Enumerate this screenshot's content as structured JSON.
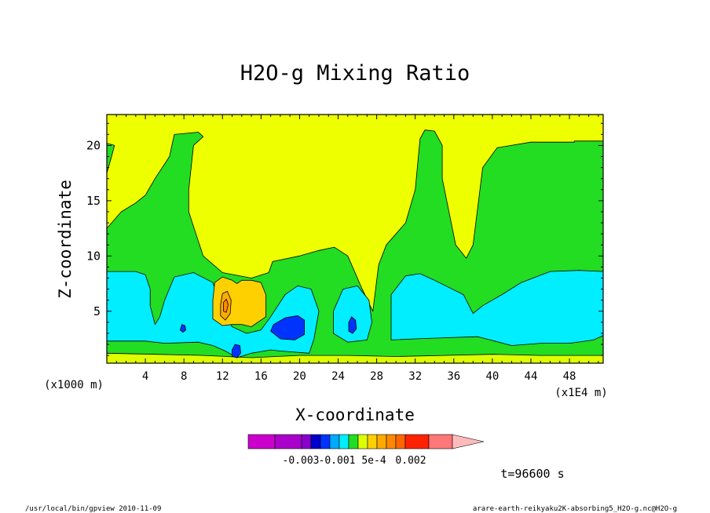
{
  "chart_data": {
    "type": "contour",
    "title": "H2O-g Mixing Ratio",
    "xlabel": "X-coordinate",
    "ylabel": "Z-coordinate",
    "x_unit_left": "(x1000 m)",
    "x_unit_right": "(x1E4 m)",
    "xlim": [
      0,
      51.5
    ],
    "ylim": [
      0.3,
      22.8
    ],
    "xticks": [
      4,
      8,
      12,
      16,
      20,
      24,
      28,
      32,
      36,
      40,
      44,
      48
    ],
    "yticks": [
      5,
      10,
      15,
      20
    ],
    "time_label": "t=96600 s",
    "colorbar": {
      "colors": [
        "#cc00cc",
        "#aa00cc",
        "#8800cc",
        "#0000cc",
        "#0033ff",
        "#00aaff",
        "#00eeff",
        "#22dd22",
        "#ddff00",
        "#ffd000",
        "#ffaa00",
        "#ff8800",
        "#ff6600",
        "#ff2200",
        "#ff7777",
        "#ffbbbb"
      ],
      "tick_labels": [
        "-0.003",
        "-0.001",
        "5e-4",
        "0.002"
      ]
    },
    "regions": [
      {
        "level": "green",
        "color": "#22dd22",
        "polygon": [
          [
            0,
            0.3
          ],
          [
            51.5,
            0.3
          ],
          [
            51.5,
            20.4
          ],
          [
            48.5,
            20.4
          ],
          [
            48.5,
            20.3
          ],
          [
            44,
            20.3
          ],
          [
            40.5,
            19.8
          ],
          [
            39,
            18
          ],
          [
            38,
            11
          ],
          [
            37.3,
            9.8
          ],
          [
            36.2,
            11
          ],
          [
            34.8,
            17
          ],
          [
            34.8,
            20
          ],
          [
            34,
            21.3
          ],
          [
            33,
            21.4
          ],
          [
            32.5,
            20.6
          ],
          [
            32,
            16
          ],
          [
            31,
            13
          ],
          [
            29,
            11
          ],
          [
            28.2,
            9.2
          ],
          [
            27.6,
            5
          ],
          [
            26.5,
            7
          ],
          [
            25,
            10
          ],
          [
            23.6,
            10.8
          ],
          [
            22,
            10.5
          ],
          [
            20,
            10
          ],
          [
            17.2,
            9.5
          ],
          [
            16.8,
            8.5
          ],
          [
            15,
            8
          ],
          [
            12,
            8.5
          ],
          [
            10,
            10
          ],
          [
            8.5,
            14
          ],
          [
            8.5,
            16
          ],
          [
            9,
            20
          ],
          [
            10,
            20.8
          ],
          [
            9.5,
            21.2
          ],
          [
            7,
            21
          ],
          [
            6.5,
            19
          ],
          [
            5,
            17
          ],
          [
            4,
            15.5
          ],
          [
            3,
            14.8
          ],
          [
            1.5,
            14
          ],
          [
            0.5,
            13
          ],
          [
            0,
            12.5
          ]
        ]
      },
      {
        "level": "green-corner",
        "color": "#22dd22",
        "polygon": [
          [
            0,
            17.5
          ],
          [
            0.5,
            19
          ],
          [
            0.8,
            20
          ],
          [
            0,
            20.2
          ]
        ]
      },
      {
        "level": "yellow-bottom",
        "color": "#ddff00",
        "polygon": [
          [
            0,
            0.3
          ],
          [
            51.5,
            0.3
          ],
          [
            51.5,
            1
          ],
          [
            50,
            1
          ],
          [
            45,
            1
          ],
          [
            40,
            1.1
          ],
          [
            35,
            1
          ],
          [
            30,
            0.9
          ],
          [
            25,
            1
          ],
          [
            20,
            1
          ],
          [
            15,
            0.8
          ],
          [
            10,
            1
          ],
          [
            5,
            1.1
          ],
          [
            0,
            1.2
          ]
        ]
      },
      {
        "level": "cyan",
        "color": "#00eeff",
        "polygon": [
          [
            0,
            2.3
          ],
          [
            4,
            2.3
          ],
          [
            6,
            2.1
          ],
          [
            9.5,
            2.2
          ],
          [
            11,
            1.9
          ],
          [
            12.3,
            1.4
          ],
          [
            13.5,
            0.8
          ],
          [
            15,
            1.2
          ],
          [
            17,
            1.5
          ],
          [
            18,
            1.4
          ],
          [
            21,
            1.2
          ],
          [
            21.5,
            2.5
          ],
          [
            22,
            5
          ],
          [
            21.2,
            7
          ],
          [
            19.8,
            7.3
          ],
          [
            18.5,
            6.5
          ],
          [
            17,
            4.5
          ],
          [
            16,
            3.3
          ],
          [
            14.5,
            3
          ],
          [
            13,
            3.6
          ],
          [
            12,
            5
          ],
          [
            11,
            7.6
          ],
          [
            9,
            8.5
          ],
          [
            7,
            8.1
          ],
          [
            6,
            6
          ],
          [
            5.5,
            4.5
          ],
          [
            5,
            3.8
          ],
          [
            4.5,
            5.5
          ],
          [
            4.5,
            7
          ],
          [
            4,
            8.3
          ],
          [
            3,
            8.6
          ],
          [
            0,
            8.6
          ]
        ]
      },
      {
        "level": "cyan-mid",
        "color": "#00eeff",
        "polygon": [
          [
            23.5,
            3
          ],
          [
            25,
            2.2
          ],
          [
            27,
            2.4
          ],
          [
            27.5,
            4
          ],
          [
            27.2,
            6
          ],
          [
            26,
            7.3
          ],
          [
            24.5,
            7
          ],
          [
            23.5,
            5
          ]
        ]
      },
      {
        "level": "cyan-right",
        "color": "#00eeff",
        "polygon": [
          [
            29.5,
            2.4
          ],
          [
            32,
            2.5
          ],
          [
            35,
            2.6
          ],
          [
            38.5,
            2.7
          ],
          [
            42,
            1.9
          ],
          [
            45,
            2.1
          ],
          [
            48,
            2.1
          ],
          [
            50.5,
            2.4
          ],
          [
            51.5,
            2.8
          ],
          [
            51.5,
            8.6
          ],
          [
            49,
            8.7
          ],
          [
            46,
            8.6
          ],
          [
            43,
            7.6
          ],
          [
            41,
            6.5
          ],
          [
            39,
            5.5
          ],
          [
            38,
            4.8
          ],
          [
            37,
            6.5
          ],
          [
            34,
            7.8
          ],
          [
            32.5,
            8.4
          ],
          [
            31,
            8.2
          ],
          [
            29.5,
            6.5
          ]
        ]
      },
      {
        "level": "orange-light",
        "color": "#ffd000",
        "polygon": [
          [
            11,
            4.3
          ],
          [
            12,
            3.7
          ],
          [
            13,
            3.8
          ],
          [
            14,
            3.8
          ],
          [
            15,
            3.6
          ],
          [
            16.5,
            4.5
          ],
          [
            16.5,
            6.5
          ],
          [
            16,
            7.6
          ],
          [
            15,
            7.8
          ],
          [
            14,
            7.8
          ],
          [
            13.5,
            7.5
          ],
          [
            13,
            7.8
          ],
          [
            12,
            8.1
          ],
          [
            11.2,
            7.6
          ],
          [
            11,
            6
          ]
        ]
      },
      {
        "level": "orange",
        "color": "#ffaa00",
        "polygon": [
          [
            11.8,
            4.6
          ],
          [
            12.3,
            4.2
          ],
          [
            12.8,
            4.8
          ],
          [
            12.9,
            6
          ],
          [
            12.5,
            6.8
          ],
          [
            12,
            6.6
          ],
          [
            11.8,
            5.6
          ]
        ]
      },
      {
        "level": "orange-dark",
        "color": "#ff8800",
        "polygon": [
          [
            12.1,
            5
          ],
          [
            12.4,
            4.9
          ],
          [
            12.6,
            5.6
          ],
          [
            12.4,
            6.1
          ],
          [
            12.1,
            5.8
          ]
        ]
      },
      {
        "level": "blue",
        "color": "#0033ff",
        "polygon": [
          [
            17,
            3.2
          ],
          [
            18,
            2.5
          ],
          [
            19.5,
            2.4
          ],
          [
            20.5,
            2.9
          ],
          [
            20.5,
            4.2
          ],
          [
            19.8,
            4.6
          ],
          [
            18.5,
            4.4
          ],
          [
            17.3,
            3.8
          ]
        ]
      },
      {
        "level": "blue-small1",
        "color": "#0033ff",
        "polygon": [
          [
            13,
            0.9
          ],
          [
            13.5,
            0.8
          ],
          [
            13.9,
            1.2
          ],
          [
            13.8,
            1.9
          ],
          [
            13.3,
            2
          ],
          [
            13,
            1.5
          ]
        ]
      },
      {
        "level": "blue-small2",
        "color": "#0033ff",
        "polygon": [
          [
            25.1,
            3.2
          ],
          [
            25.5,
            3
          ],
          [
            25.9,
            3.4
          ],
          [
            25.8,
            4.2
          ],
          [
            25.4,
            4.5
          ],
          [
            25.1,
            4
          ]
        ]
      },
      {
        "level": "blue-small3",
        "color": "#0033ff",
        "polygon": [
          [
            7.6,
            3.3
          ],
          [
            7.9,
            3.1
          ],
          [
            8.2,
            3.3
          ],
          [
            8.1,
            3.7
          ],
          [
            7.8,
            3.8
          ]
        ]
      }
    ]
  },
  "footer": {
    "left": "/usr/local/bin/gpview  2010-11-09",
    "right": "arare-earth-reikyaku2K-absorbing5_H2O-g.nc@H2O-g"
  }
}
